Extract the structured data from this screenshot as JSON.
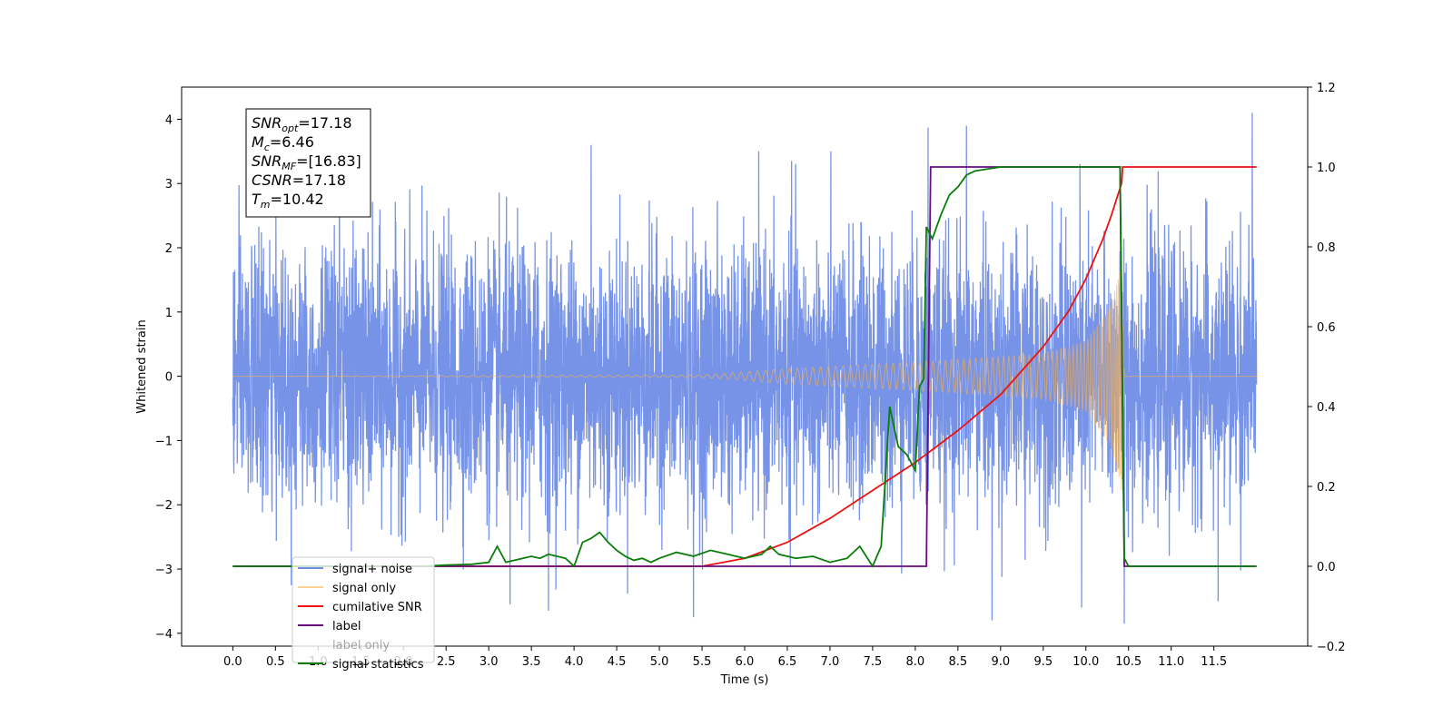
{
  "chart_data": {
    "type": "line",
    "title": "",
    "xlabel": "Time (s)",
    "ylabel": "Whitened strain",
    "xlim": [
      -0.6,
      12.6
    ],
    "ylim": [
      -4.2,
      4.5
    ],
    "y2lim": [
      -0.2,
      1.2
    ],
    "grid": false,
    "xticks": [
      "0.0",
      "0.5",
      "1.0",
      "1.5",
      "2.0",
      "2.5",
      "3.0",
      "3.5",
      "4.0",
      "4.5",
      "5.0",
      "5.5",
      "6.0",
      "6.5",
      "7.0",
      "7.5",
      "8.0",
      "8.5",
      "9.0",
      "9.5",
      "10.0",
      "10.5",
      "11.0",
      "11.5"
    ],
    "yticks": [
      "4",
      "3",
      "2",
      "1",
      "0",
      "−1",
      "−2",
      "−3",
      "−4"
    ],
    "y2ticks": [
      "1.2",
      "1.0",
      "0.8",
      "0.6",
      "0.4",
      "0.2",
      "0.0",
      "−0.2"
    ],
    "annotation": {
      "lines": [
        {
          "base": "SNR",
          "sub": "opt",
          "value": "=17.18"
        },
        {
          "base": "M",
          "sub": "c",
          "value": "=6.46"
        },
        {
          "base": "SNR",
          "sub": "MF",
          "value": "=[16.83]"
        },
        {
          "base": "CSNR",
          "sub": "",
          "value": "=17.18"
        },
        {
          "base": "T",
          "sub": "m",
          "value": "=10.42"
        }
      ]
    },
    "legend": {
      "placement": "lower-left",
      "entries": [
        "signal+ noise",
        "signal only",
        "cumilative SNR",
        "label",
        "label only",
        "signal statistics"
      ]
    },
    "series": [
      {
        "name": "signal+ noise",
        "axis": "left",
        "color": "#6f8de6",
        "kind": "noise",
        "x_range": [
          0.0,
          12.0
        ],
        "noise_sigma": 1.0,
        "peaks": [
          {
            "x": 8.15,
            "y": 3.87
          },
          {
            "x": 8.6,
            "y": 3.9
          },
          {
            "x": 11.95,
            "y": 4.1
          },
          {
            "x": 4.2,
            "y": 3.6
          },
          {
            "x": 1.25,
            "y": 3.45
          },
          {
            "x": 6.55,
            "y": 3.35
          },
          {
            "x": 10.45,
            "y": -3.85
          },
          {
            "x": 8.9,
            "y": -3.8
          },
          {
            "x": 5.4,
            "y": -3.75
          },
          {
            "x": 3.7,
            "y": -3.65
          },
          {
            "x": 9.95,
            "y": -3.6
          },
          {
            "x": 3.25,
            "y": -3.55
          },
          {
            "x": 11.55,
            "y": -3.5
          }
        ]
      },
      {
        "name": "signal only",
        "axis": "left",
        "color": "#ffb347",
        "kind": "chirp",
        "x_range": [
          0.0,
          12.0
        ],
        "envelope": [
          [
            0.0,
            0.0
          ],
          [
            5.5,
            0.02
          ],
          [
            6.5,
            0.12
          ],
          [
            8.0,
            0.22
          ],
          [
            9.5,
            0.35
          ],
          [
            10.0,
            0.55
          ],
          [
            10.3,
            1.1
          ],
          [
            10.42,
            1.8
          ],
          [
            10.45,
            0.0
          ],
          [
            12.0,
            0.0
          ]
        ]
      },
      {
        "name": "cumilative SNR",
        "axis": "right",
        "color": "#ee1111",
        "kind": "line",
        "x": [
          0.0,
          5.5,
          6.0,
          6.5,
          7.0,
          7.5,
          8.0,
          8.5,
          9.0,
          9.5,
          9.8,
          10.0,
          10.2,
          10.3,
          10.42,
          10.43,
          12.0
        ],
        "y": [
          0.0,
          0.0,
          0.02,
          0.06,
          0.12,
          0.19,
          0.26,
          0.34,
          0.43,
          0.55,
          0.64,
          0.72,
          0.82,
          0.88,
          0.96,
          1.0,
          1.0
        ]
      },
      {
        "name": "label",
        "axis": "right",
        "color": "#6a0d83",
        "kind": "line",
        "x": [
          0.0,
          8.13,
          8.18,
          10.4,
          10.45,
          12.0
        ],
        "y": [
          0.0,
          0.0,
          1.0,
          1.0,
          0.0,
          0.0
        ]
      },
      {
        "name": "signal statistics",
        "axis": "right",
        "color": "#0a7d0a",
        "kind": "line",
        "x": [
          0.0,
          2.2,
          2.5,
          2.8,
          3.0,
          3.1,
          3.2,
          3.3,
          3.4,
          3.5,
          3.6,
          3.7,
          3.8,
          3.9,
          4.0,
          4.1,
          4.2,
          4.3,
          4.4,
          4.5,
          4.6,
          4.7,
          4.8,
          4.9,
          5.0,
          5.2,
          5.4,
          5.6,
          5.8,
          6.0,
          6.2,
          6.3,
          6.4,
          6.6,
          6.8,
          7.0,
          7.2,
          7.35,
          7.5,
          7.6,
          7.7,
          7.8,
          7.9,
          8.0,
          8.05,
          8.1,
          8.13,
          8.2,
          8.3,
          8.4,
          8.5,
          8.6,
          8.7,
          9.0,
          10.4,
          10.45,
          10.5,
          12.0
        ],
        "y": [
          0.0,
          0.0,
          0.003,
          0.005,
          0.01,
          0.05,
          0.01,
          0.015,
          0.02,
          0.025,
          0.02,
          0.03,
          0.025,
          0.02,
          0.0,
          0.06,
          0.07,
          0.085,
          0.06,
          0.04,
          0.025,
          0.015,
          0.02,
          0.01,
          0.02,
          0.035,
          0.025,
          0.04,
          0.03,
          0.02,
          0.03,
          0.05,
          0.03,
          0.02,
          0.025,
          0.01,
          0.02,
          0.05,
          0.0,
          0.05,
          0.4,
          0.3,
          0.28,
          0.24,
          0.45,
          0.47,
          0.85,
          0.82,
          0.88,
          0.93,
          0.95,
          0.98,
          0.99,
          1.0,
          1.0,
          0.02,
          0.0,
          0.0
        ]
      }
    ]
  }
}
